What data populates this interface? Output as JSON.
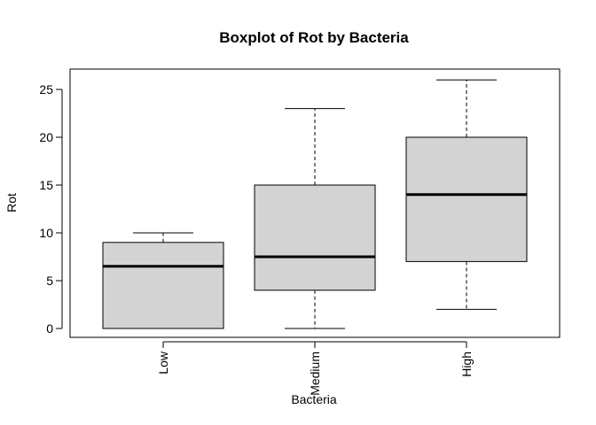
{
  "chart_data": {
    "type": "boxplot",
    "title": "Boxplot of Rot by Bacteria",
    "xlabel": "Bacteria",
    "ylabel": "Rot",
    "categories": [
      "Low",
      "Medium",
      "High"
    ],
    "boxes": [
      {
        "category": "Low",
        "min": 0,
        "q1": 0,
        "median": 6.5,
        "q3": 9,
        "max": 10
      },
      {
        "category": "Medium",
        "min": 0,
        "q1": 4,
        "median": 7.5,
        "q3": 15,
        "max": 23
      },
      {
        "category": "High",
        "min": 2,
        "q1": 7,
        "median": 14,
        "q3": 20,
        "max": 26
      }
    ],
    "yticks": [
      0,
      5,
      10,
      15,
      20,
      25
    ],
    "ylim": [
      -1,
      27.6
    ],
    "box_fill": "#d3d3d3",
    "grid": false,
    "legend": "none"
  }
}
